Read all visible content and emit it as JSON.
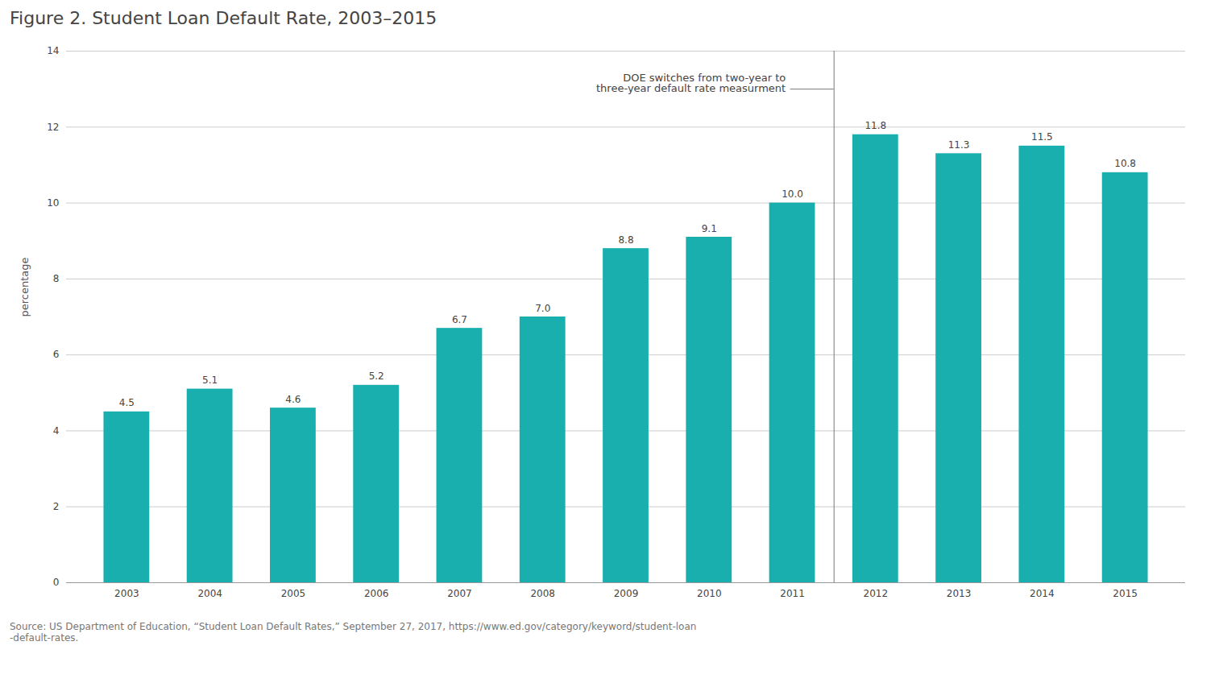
{
  "chart_data": {
    "type": "bar",
    "title": "Figure 2. Student Loan Default Rate, 2003–2015",
    "categories": [
      "2003",
      "2004",
      "2005",
      "2006",
      "2007",
      "2008",
      "2009",
      "2010",
      "2011",
      "2012",
      "2013",
      "2014",
      "2015"
    ],
    "values": [
      4.5,
      5.1,
      4.6,
      5.2,
      6.7,
      7.0,
      8.8,
      9.1,
      10.0,
      11.8,
      11.3,
      11.5,
      10.8
    ],
    "value_labels": [
      "4.5",
      "5.1",
      "4.6",
      "5.2",
      "6.7",
      "7.0",
      "8.8",
      "9.1",
      "10.0",
      "11.8",
      "11.3",
      "11.5",
      "10.8"
    ],
    "data_labels": true,
    "color": "#1AAFAF",
    "ylabel": "percentage",
    "ylim": [
      0,
      14
    ],
    "yticks": [
      0,
      2,
      4,
      6,
      8,
      10,
      12,
      14
    ],
    "grid": true,
    "annotations": [
      {
        "text": "DOE switches from two-year to\nthree-year default rate measurment",
        "between": [
          "2011",
          "2012"
        ]
      }
    ],
    "source": "Source: US Department of Education, “Student Loan Default Rates,” September 27, 2017, https://www.ed.gov/category/keyword/student-loan\n-default-rates."
  }
}
